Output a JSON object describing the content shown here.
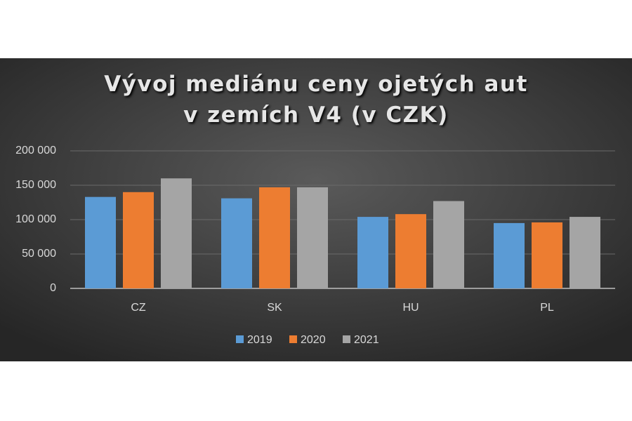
{
  "chart_data": {
    "type": "bar",
    "title": "Vývoj mediánu ceny ojetých aut v zemích V4 (v CZK)",
    "categories": [
      "CZ",
      "SK",
      "HU",
      "PL"
    ],
    "series": [
      {
        "name": "2019",
        "color": "#5b9bd5",
        "values": [
          133000,
          131000,
          104000,
          95000
        ]
      },
      {
        "name": "2020",
        "color": "#ed7d31",
        "values": [
          140000,
          147000,
          108000,
          96000
        ]
      },
      {
        "name": "2021",
        "color": "#a5a5a5",
        "values": [
          160000,
          147000,
          127000,
          104000
        ]
      }
    ],
    "ylim": [
      0,
      200000
    ],
    "yticks": [
      0,
      {
        "value": 50000,
        "label": "50 000"
      },
      {
        "value": 100000,
        "label": "100 000"
      },
      {
        "value": 150000,
        "label": "150 000"
      },
      {
        "value": 200000,
        "label": "200 000"
      }
    ],
    "grid": true,
    "legend": "bottom"
  }
}
